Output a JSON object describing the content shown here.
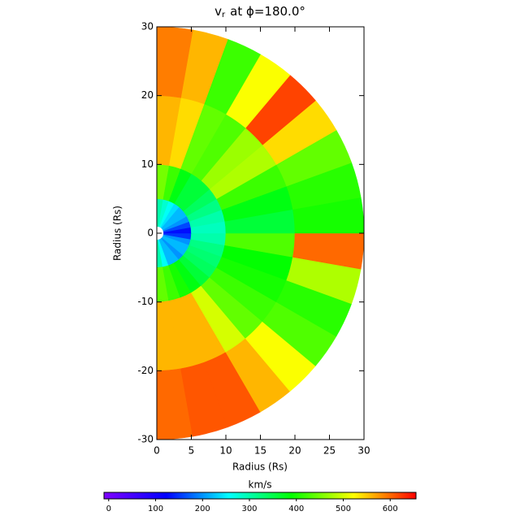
{
  "chart_data": {
    "type": "polar-heatmap",
    "title": {
      "symbol": "v",
      "subscript": "r",
      "text": "at ϕ=180.0°"
    },
    "xlabel": "Radius (Rs)",
    "ylabel": "Radius (Rs)",
    "xlim": [
      0,
      30
    ],
    "xticks": [
      0,
      5,
      10,
      15,
      20,
      25,
      30
    ],
    "ylim": [
      -30,
      30
    ],
    "yticks": [
      -30,
      -20,
      -10,
      0,
      10,
      20,
      30
    ],
    "theta": [
      -90,
      -80,
      -70,
      -60,
      -50,
      -40,
      -30,
      -20,
      -10,
      0,
      10,
      20,
      30,
      40,
      50,
      60,
      70,
      80,
      90
    ],
    "r": [
      1,
      5,
      10,
      20,
      30
    ],
    "values": [
      [
        300,
        440,
        560,
        600
      ],
      [
        260,
        420,
        560,
        610
      ],
      [
        220,
        400,
        560,
        610
      ],
      [
        220,
        380,
        500,
        560
      ],
      [
        200,
        360,
        440,
        520
      ],
      [
        220,
        340,
        420,
        430
      ],
      [
        220,
        330,
        400,
        410
      ],
      [
        200,
        320,
        390,
        480
      ],
      [
        150,
        300,
        430,
        600
      ],
      [
        130,
        290,
        360,
        400
      ],
      [
        160,
        300,
        380,
        410
      ],
      [
        200,
        320,
        420,
        440
      ],
      [
        220,
        340,
        480,
        540
      ],
      [
        220,
        360,
        470,
        620
      ],
      [
        240,
        360,
        430,
        520
      ],
      [
        260,
        380,
        440,
        420
      ],
      [
        280,
        420,
        540,
        560
      ],
      [
        300,
        450,
        560,
        590
      ]
    ],
    "colormap": [
      "#7f00ff",
      "#0000ff",
      "#00ffff",
      "#00ff00",
      "#ffff00",
      "#ff0000"
    ],
    "colorbar": {
      "label": "km/s",
      "lim": [
        -10,
        655
      ],
      "ticks": [
        0,
        100,
        200,
        300,
        400,
        500,
        600
      ]
    }
  }
}
